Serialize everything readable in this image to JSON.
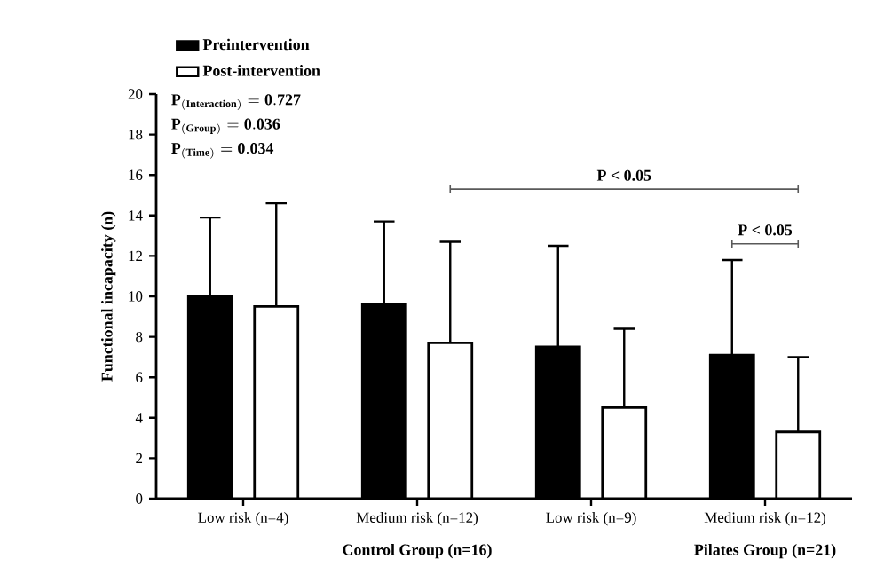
{
  "chart_data": {
    "type": "bar",
    "ylabel": "Functional incapacity (n)",
    "categories": [
      "Low risk (n=4)",
      "Medium risk (n=12)",
      "Low risk (n=9)",
      "Medium risk (n=12)"
    ],
    "series": [
      {
        "name": "Preintervention",
        "color": "#000000",
        "values": [
          10.0,
          9.6,
          7.5,
          7.1
        ],
        "errors": [
          [
            10.0,
            13.9
          ],
          [
            9.6,
            13.7
          ],
          [
            7.5,
            12.5
          ],
          [
            7.1,
            11.8
          ]
        ]
      },
      {
        "name": "Post-intervention",
        "color": "#ffffff",
        "values": [
          9.5,
          7.7,
          4.5,
          3.3
        ],
        "errors": [
          [
            9.5,
            14.6
          ],
          [
            7.7,
            12.7
          ],
          [
            4.5,
            8.4
          ],
          [
            3.3,
            7.0
          ]
        ]
      }
    ],
    "ylim": [
      0,
      20
    ],
    "yticks": [
      0,
      2,
      4,
      6,
      8,
      10,
      12,
      14,
      16,
      18,
      20
    ],
    "legend": "top left",
    "annotations": [
      "\\mathbf{P_{(Interaction)} = 0.727}",
      "\\mathbf{P_{(Group)} = 0.036}",
      "\\mathbf{P_{(Time)} = 0.034}",
      "P < 0.05",
      "P < 0.05",
      "Control Group (n=16)",
      "Pilates Group (n=21)"
    ]
  }
}
